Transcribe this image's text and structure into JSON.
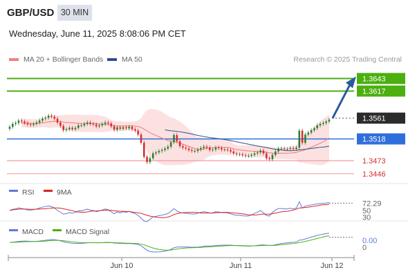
{
  "header": {
    "symbol": "GBP/USD",
    "timeframe": "30 MIN",
    "datetime": "Wednesday, June 11, 2025 8:08:06 PM CET"
  },
  "legend": {
    "ma20_label": "MA 20 + Bollinger Bands",
    "ma50_label": "MA 50",
    "credit": "Research © 2025 Trading Central"
  },
  "colors": {
    "ma20": "#f08080",
    "ma50": "#2b4f8f",
    "band_fill": "#fbd7d7",
    "up_candle": "#2e7d32",
    "down_candle": "#d32f2f",
    "target_line": "#4caf10",
    "pivot_line": "#2f6fdc",
    "support_line": "#f0a0a0",
    "rsi": "#5b7bd5",
    "rsi_ma": "#e02020",
    "macd": "#5b7bd5",
    "macd_signal": "#4caf10",
    "arrow": "#2b5aa0"
  },
  "chart_data": [
    {
      "type": "candlestick",
      "title": "",
      "x_ticks": [
        "Jun 10",
        "Jun 11",
        "Jun 12"
      ],
      "ylim": [
        1.343,
        1.3665
      ],
      "current_price": 1.3561,
      "levels": [
        {
          "label": "1.3643",
          "value": 1.3643,
          "kind": "resistance"
        },
        {
          "label": "1.3617",
          "value": 1.3617,
          "kind": "resistance"
        },
        {
          "label": "1.3561",
          "value": 1.3561,
          "kind": "current"
        },
        {
          "label": "1.3518",
          "value": 1.3518,
          "kind": "pivot"
        },
        {
          "label": "1.3473",
          "value": 1.3473,
          "kind": "support"
        },
        {
          "label": "1.3446",
          "value": 1.3446,
          "kind": "support"
        }
      ],
      "close": [
        1.3543,
        1.3549,
        1.3551,
        1.3556,
        1.3554,
        1.3551,
        1.3548,
        1.3547,
        1.3549,
        1.3552,
        1.3556,
        1.356,
        1.3562,
        1.3566,
        1.3564,
        1.356,
        1.3552,
        1.3545,
        1.3536,
        1.3538,
        1.3541,
        1.3538,
        1.3541,
        1.3546,
        1.3546,
        1.3549,
        1.3552,
        1.3549,
        1.3548,
        1.3544,
        1.3546,
        1.3549,
        1.3552,
        1.355,
        1.3544,
        1.3537,
        1.3542,
        1.3539,
        1.3542,
        1.354,
        1.3543,
        1.3538,
        1.3535,
        1.3527,
        1.351,
        1.3481,
        1.347,
        1.3478,
        1.3488,
        1.349,
        1.3493,
        1.3495,
        1.3498,
        1.3502,
        1.3511,
        1.3526,
        1.3513,
        1.3503,
        1.35,
        1.3498,
        1.3495,
        1.3493,
        1.3493,
        1.3496,
        1.3499,
        1.3502,
        1.35,
        1.3495,
        1.3496,
        1.35,
        1.3499,
        1.3496,
        1.3496,
        1.3495,
        1.3492,
        1.3488,
        1.3486,
        1.3486,
        1.3484,
        1.3483,
        1.3483,
        1.3485,
        1.3488,
        1.349,
        1.3494,
        1.3488,
        1.3478,
        1.3476,
        1.3485,
        1.3492,
        1.3498,
        1.3498,
        1.3497,
        1.3497,
        1.3499,
        1.3497,
        1.35,
        1.3535,
        1.351,
        1.3527,
        1.3531,
        1.3536,
        1.354,
        1.3546,
        1.3549,
        1.3551,
        1.3554,
        1.3558
      ],
      "ma20_start_index": 4,
      "ma50_start_index": 52
    },
    {
      "type": "line",
      "title": "RSI",
      "series_names": [
        "RSI",
        "9MA"
      ],
      "y_ticks": [
        {
          "label": "72.29",
          "value": 72.29
        },
        {
          "label": "50",
          "value": 50
        },
        {
          "label": "30",
          "value": 30
        }
      ],
      "ylim": [
        20,
        88
      ]
    },
    {
      "type": "line",
      "title": "MACD",
      "series_names": [
        "MACD",
        "MACD Signal"
      ],
      "y_ticks": [
        {
          "label": "0.00",
          "value": 0.0
        },
        {
          "label": "0",
          "value": 0
        }
      ],
      "ylim": [
        -0.0026,
        0.0012
      ]
    }
  ]
}
